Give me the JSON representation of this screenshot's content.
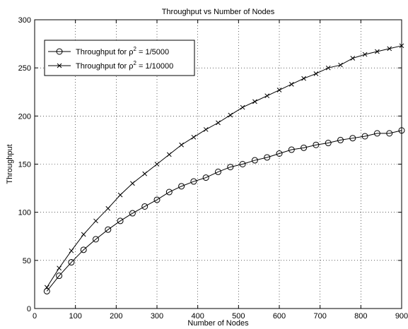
{
  "chart_data": {
    "type": "line",
    "title": "Throughput vs Number of Nodes",
    "xlabel": "Number of Nodes",
    "ylabel": "Throughput",
    "xlim": [
      0,
      900
    ],
    "ylim": [
      0,
      300
    ],
    "xticks": [
      0,
      100,
      200,
      300,
      400,
      500,
      600,
      700,
      800,
      900
    ],
    "yticks": [
      0,
      50,
      100,
      150,
      200,
      250,
      300
    ],
    "grid": true,
    "legend_position": "top-left",
    "x": [
      30,
      60,
      90,
      120,
      150,
      180,
      210,
      240,
      270,
      300,
      330,
      360,
      390,
      420,
      450,
      480,
      510,
      540,
      570,
      600,
      630,
      660,
      690,
      720,
      750,
      780,
      810,
      840,
      870,
      900
    ],
    "series": [
      {
        "name": "Throughput for ρ² = 1/5000",
        "legend_prefix": "Throughput for ρ",
        "legend_sup": "2",
        "legend_suffix": " = 1/5000",
        "marker": "circle",
        "values": [
          18,
          34,
          48,
          61,
          72,
          82,
          91,
          99,
          106,
          113,
          121,
          127,
          132,
          136,
          142,
          147,
          150,
          154,
          157,
          161,
          165,
          167,
          170,
          172,
          175,
          177,
          179,
          182,
          182,
          185
        ]
      },
      {
        "name": "Throughput for ρ² = 1/10000",
        "legend_prefix": "Throughput for ρ",
        "legend_sup": "2",
        "legend_suffix": " = 1/10000",
        "marker": "x",
        "values": [
          22,
          42,
          60,
          77,
          91,
          104,
          118,
          130,
          140,
          150,
          160,
          170,
          178,
          186,
          193,
          201,
          209,
          215,
          221,
          227,
          233,
          239,
          244,
          250,
          253,
          260,
          264,
          267,
          270,
          273
        ]
      }
    ]
  }
}
